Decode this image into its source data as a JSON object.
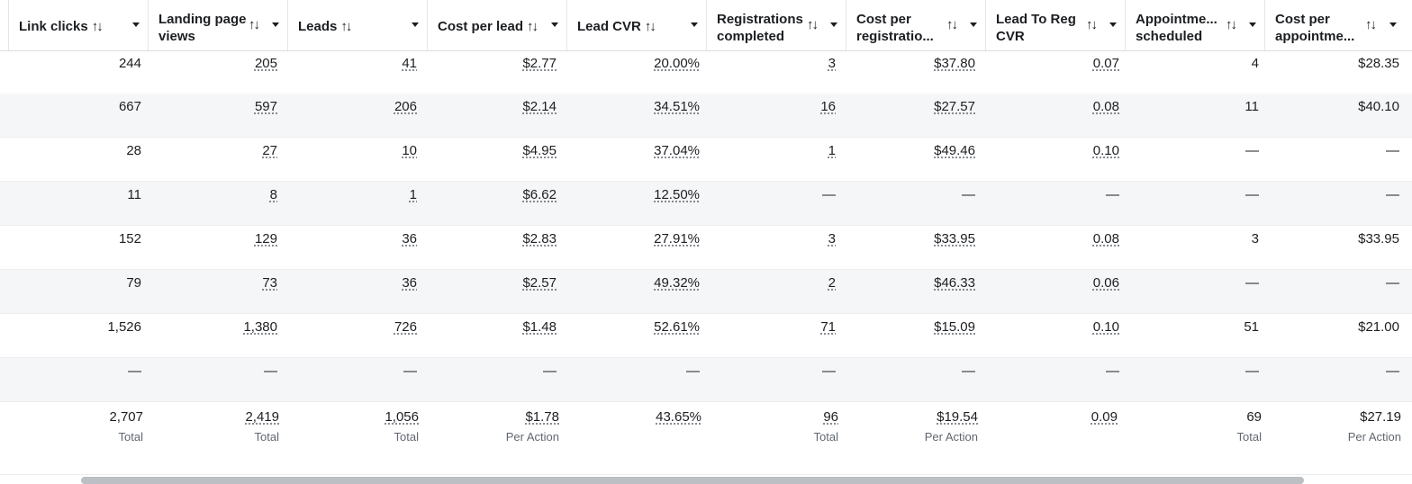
{
  "columns": [
    {
      "key": "link_clicks",
      "line1": "Link clicks",
      "line2": ""
    },
    {
      "key": "landing_page_views",
      "line1": "Landing page",
      "line2": "views"
    },
    {
      "key": "leads",
      "line1": "Leads",
      "line2": ""
    },
    {
      "key": "cost_per_lead",
      "line1": "Cost per lead",
      "line2": ""
    },
    {
      "key": "lead_cvr",
      "line1": "Lead CVR",
      "line2": ""
    },
    {
      "key": "registrations_completed",
      "line1": "Registrations",
      "line2": "completed"
    },
    {
      "key": "cost_per_registration",
      "line1": "Cost per",
      "line2": "registratio..."
    },
    {
      "key": "lead_to_reg_cvr",
      "line1": "Lead To Reg",
      "line2": "CVR"
    },
    {
      "key": "appointments_scheduled",
      "line1": "Appointme...",
      "line2": "scheduled"
    },
    {
      "key": "cost_per_appointment",
      "line1": "Cost per",
      "line2": "appointme..."
    }
  ],
  "rows": [
    [
      "244",
      "205",
      "41",
      "$2.77",
      "20.00%",
      "3",
      "$37.80",
      "0.07",
      "4",
      "$28.35"
    ],
    [
      "667",
      "597",
      "206",
      "$2.14",
      "34.51%",
      "16",
      "$27.57",
      "0.08",
      "11",
      "$40.10"
    ],
    [
      "28",
      "27",
      "10",
      "$4.95",
      "37.04%",
      "1",
      "$49.46",
      "0.10",
      "—",
      "—"
    ],
    [
      "11",
      "8",
      "1",
      "$6.62",
      "12.50%",
      "—",
      "—",
      "—",
      "—",
      "—"
    ],
    [
      "152",
      "129",
      "36",
      "$2.83",
      "27.91%",
      "3",
      "$33.95",
      "0.08",
      "3",
      "$33.95"
    ],
    [
      "79",
      "73",
      "36",
      "$2.57",
      "49.32%",
      "2",
      "$46.33",
      "0.06",
      "—",
      "—"
    ],
    [
      "1,526",
      "1,380",
      "726",
      "$1.48",
      "52.61%",
      "71",
      "$15.09",
      "0.10",
      "51",
      "$21.00"
    ],
    [
      "—",
      "—",
      "—",
      "—",
      "—",
      "—",
      "—",
      "—",
      "—",
      "—"
    ]
  ],
  "totals": {
    "values": [
      "2,707",
      "2,419",
      "1,056",
      "$1.78",
      "43.65%",
      "96",
      "$19.54",
      "0.09",
      "69",
      "$27.19"
    ],
    "labels": [
      "Total",
      "Total",
      "Total",
      "Per Action",
      "",
      "Total",
      "Per Action",
      "",
      "Total",
      "Per Action"
    ]
  },
  "icons": {
    "sort": "sort-arrows-icon",
    "dropdown": "caret-down-icon"
  }
}
